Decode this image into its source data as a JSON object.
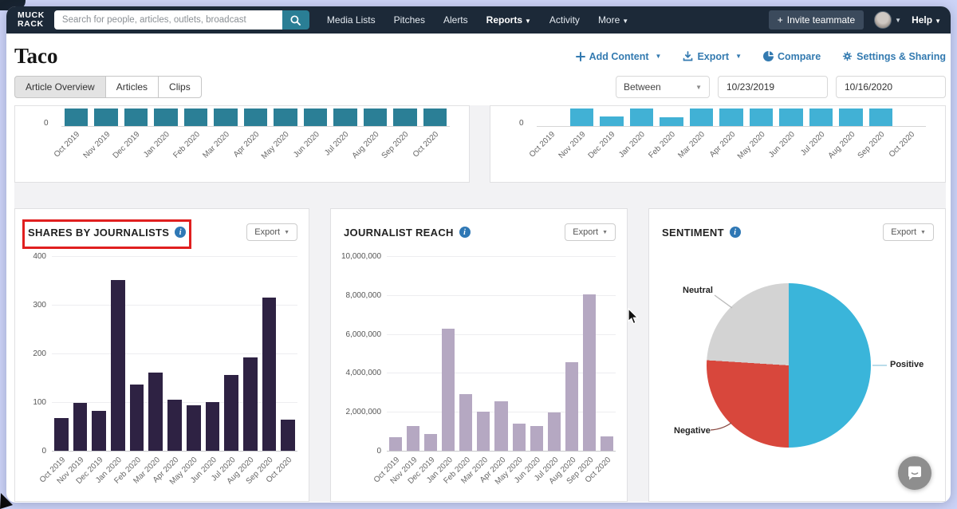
{
  "ui": {
    "export_label": "Export"
  },
  "nav": {
    "logo_line1": "MUCK",
    "logo_line2": "RACK",
    "search_placeholder": "Search for people, articles, outlets, broadcast",
    "items": [
      {
        "label": "Media Lists"
      },
      {
        "label": "Pitches"
      },
      {
        "label": "Alerts"
      },
      {
        "label": "Reports",
        "caret": true,
        "active": true
      },
      {
        "label": "Activity"
      },
      {
        "label": "More",
        "caret": true
      }
    ],
    "invite_plus": "+",
    "invite_label": "Invite teammate",
    "help_label": "Help"
  },
  "header": {
    "title": "Taco",
    "actions": [
      {
        "label": "Add Content",
        "icon": "plus",
        "caret": true
      },
      {
        "label": "Export",
        "icon": "download",
        "caret": true
      },
      {
        "label": "Compare",
        "icon": "pie"
      },
      {
        "label": "Settings & Sharing",
        "icon": "gear"
      }
    ]
  },
  "tabs": [
    {
      "label": "Article Overview",
      "active": true
    },
    {
      "label": "Articles"
    },
    {
      "label": "Clips"
    }
  ],
  "filters": {
    "range_operator": "Between",
    "start_date": "10/23/2019",
    "end_date": "10/16/2020"
  },
  "chart_data": [
    {
      "id": "top-left-volume",
      "type": "bar",
      "partial": true,
      "note": "chart scrolled out of view; only bar bases visible, all months have bars",
      "categories": [
        "Oct 2019",
        "Nov 2019",
        "Dec 2019",
        "Jan 2020",
        "Feb 2020",
        "Mar 2020",
        "Apr 2020",
        "May 2020",
        "Jun 2020",
        "Jul 2020",
        "Aug 2020",
        "Sep 2020",
        "Oct 2020"
      ],
      "values_visible": [
        1,
        1,
        1,
        1,
        1,
        1,
        1,
        1,
        1,
        1,
        1,
        1,
        1
      ],
      "baseline_label": "0",
      "bar_color": "#2b7f96"
    },
    {
      "id": "top-right-volume",
      "type": "bar",
      "partial": true,
      "note": "chart scrolled out of view; visible bar stubs vary by month",
      "categories": [
        "Oct 2019",
        "Nov 2019",
        "Dec 2019",
        "Jan 2020",
        "Feb 2020",
        "Mar 2020",
        "Apr 2020",
        "May 2020",
        "Jun 2020",
        "Jul 2020",
        "Aug 2020",
        "Sep 2020",
        "Oct 2020"
      ],
      "values_visible": [
        0,
        1,
        0.55,
        1,
        0.5,
        1,
        1,
        1,
        1,
        1,
        1,
        1,
        0
      ],
      "baseline_label": "0",
      "bar_color": "#41b1d5"
    },
    {
      "id": "shares-by-journalists",
      "type": "bar",
      "title": "SHARES BY JOURNALISTS",
      "categories": [
        "Oct 2019",
        "Nov 2019",
        "Dec 2019",
        "Jan 2020",
        "Feb 2020",
        "Mar 2020",
        "Apr 2020",
        "May 2020",
        "Jun 2020",
        "Jul 2020",
        "Aug 2020",
        "Sep 2020",
        "Oct 2020"
      ],
      "values": [
        68,
        98,
        82,
        350,
        136,
        160,
        105,
        93,
        100,
        155,
        192,
        315,
        64
      ],
      "ylim": [
        0,
        400
      ],
      "yticks": [
        {
          "v": 0,
          "label": "0"
        },
        {
          "v": 100,
          "label": "100"
        },
        {
          "v": 200,
          "label": "200"
        },
        {
          "v": 300,
          "label": "300"
        },
        {
          "v": 400,
          "label": "400"
        }
      ],
      "bar_color": "#2e2243",
      "grid": true,
      "annotated": "red box drawn around panel title"
    },
    {
      "id": "journalist-reach",
      "type": "bar",
      "title": "JOURNALIST REACH",
      "categories": [
        "Oct 2019",
        "Nov 2019",
        "Dec 2019",
        "Jan 2020",
        "Feb 2020",
        "Mar 2020",
        "Apr 2020",
        "May 2020",
        "Jun 2020",
        "Jul 2020",
        "Aug 2020",
        "Sep 2020",
        "Oct 2020"
      ],
      "values": [
        700000,
        1250000,
        850000,
        6250000,
        2900000,
        2000000,
        2550000,
        1400000,
        1250000,
        1950000,
        4550000,
        8050000,
        750000
      ],
      "ylim": [
        0,
        10000000
      ],
      "yticks": [
        {
          "v": 0,
          "label": "0"
        },
        {
          "v": 2000000,
          "label": "2,000,000"
        },
        {
          "v": 4000000,
          "label": "4,000,000"
        },
        {
          "v": 6000000,
          "label": "6,000,000"
        },
        {
          "v": 8000000,
          "label": "8,000,000"
        },
        {
          "v": 10000000,
          "label": "10,000,000"
        }
      ],
      "bar_color": "#b5a8c2",
      "grid": true
    },
    {
      "id": "sentiment",
      "type": "pie",
      "title": "SENTIMENT",
      "slices": [
        {
          "label": "Positive",
          "pct": 50,
          "color": "#3ab5da"
        },
        {
          "label": "Negative",
          "pct": 26,
          "color": "#d8473c"
        },
        {
          "label": "Neutral",
          "pct": 24,
          "color": "#d3d3d3"
        }
      ],
      "legend_position": "callout-labels"
    }
  ]
}
